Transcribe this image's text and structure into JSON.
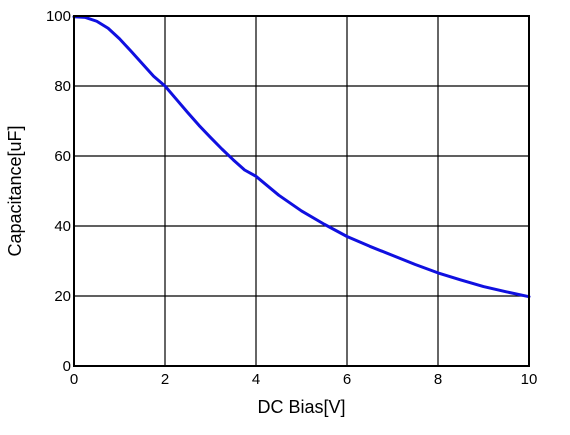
{
  "chart_data": {
    "type": "line",
    "title": "",
    "xlabel": "DC Bias[V]",
    "ylabel": "Capacitance[uF]",
    "xlim": [
      0,
      10
    ],
    "ylim": [
      0,
      100
    ],
    "x_ticks": [
      0,
      2,
      4,
      6,
      8,
      10
    ],
    "y_ticks": [
      0,
      20,
      40,
      60,
      80,
      100
    ],
    "grid": true,
    "series": [
      {
        "color": "#1010e0",
        "x": [
          0,
          0.25,
          0.5,
          0.75,
          1.0,
          1.25,
          1.5,
          1.75,
          2.0,
          2.25,
          2.5,
          2.75,
          3.0,
          3.25,
          3.5,
          3.75,
          4.0,
          4.5,
          5.0,
          5.5,
          6.0,
          6.5,
          7.0,
          7.5,
          8.0,
          8.5,
          9.0,
          9.5,
          10.0
        ],
        "y": [
          99.8,
          99.6,
          98.5,
          96.5,
          93.5,
          90.0,
          86.4,
          82.8,
          80.0,
          76.2,
          72.4,
          68.7,
          65.3,
          62.0,
          58.9,
          56.0,
          54.2,
          48.8,
          44.3,
          40.5,
          37.0,
          34.2,
          31.6,
          29.0,
          26.6,
          24.6,
          22.7,
          21.2,
          19.8
        ]
      }
    ]
  }
}
